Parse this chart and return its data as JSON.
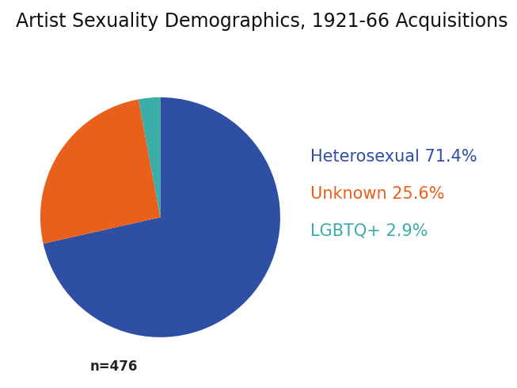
{
  "title": "Artist Sexuality Demographics, 1921-66 Acquisitions",
  "slices": [
    71.4,
    25.6,
    2.9
  ],
  "labels": [
    "Heterosexual",
    "Unknown",
    "LGBTQ+"
  ],
  "colors": [
    "#2e4fa3",
    "#e8601c",
    "#3aada8"
  ],
  "legend_colors": [
    "#2e4fa3",
    "#e8601c",
    "#3aada8"
  ],
  "legend_texts": [
    "Heterosexual 71.4%",
    "Unknown 25.6%",
    "LGBTQ+ 2.9%"
  ],
  "n_label": "n=476",
  "startangle": 90,
  "background_color": "#ffffff",
  "title_fontsize": 17,
  "legend_fontsize": 15,
  "n_fontsize": 12
}
